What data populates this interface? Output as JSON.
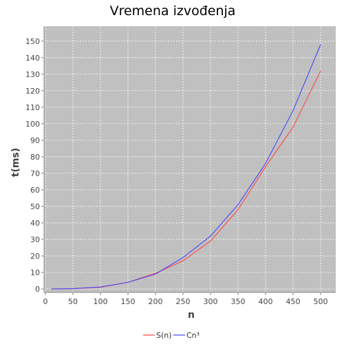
{
  "chart_data": {
    "type": "line",
    "title": "Vremena izvođenja",
    "xlabel": "n",
    "ylabel": "t(ms)",
    "xlim": [
      0,
      525
    ],
    "ylim": [
      0,
      157
    ],
    "xticks": [
      0,
      50,
      100,
      150,
      200,
      250,
      300,
      350,
      400,
      450,
      500
    ],
    "yticks": [
      0,
      10,
      20,
      30,
      40,
      50,
      60,
      70,
      80,
      90,
      100,
      110,
      120,
      130,
      140,
      150
    ],
    "grid": true,
    "legend_position": "bottom",
    "colors": {
      "plot_background": "#c0c0c0",
      "grid": "#ffffff",
      "axis": "#888888",
      "series": [
        "#ff4444",
        "#4444ff"
      ]
    },
    "series": [
      {
        "name": "S(n)",
        "color": "#ff4444",
        "x": [
          10,
          50,
          100,
          150,
          200,
          250,
          300,
          350,
          400,
          450,
          500
        ],
        "y": [
          0,
          0.2,
          1,
          4,
          9.5,
          17,
          29,
          48,
          74,
          98,
          132
        ]
      },
      {
        "name": "Cn³",
        "color": "#4444ff",
        "x": [
          10,
          50,
          100,
          150,
          200,
          250,
          300,
          350,
          400,
          450,
          500
        ],
        "y": [
          0,
          0.2,
          1.2,
          4,
          9,
          19,
          32,
          51,
          76,
          108,
          148
        ]
      }
    ]
  }
}
